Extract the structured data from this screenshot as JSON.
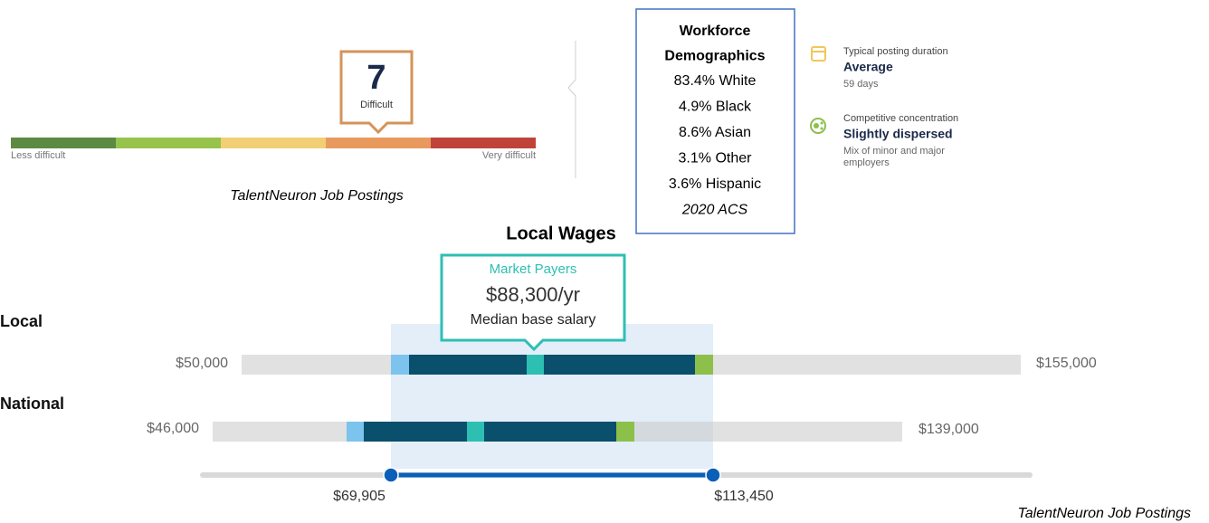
{
  "difficulty": {
    "score": "7",
    "label": "Difficult",
    "scale_low": "Less difficult",
    "scale_high": "Very difficult",
    "source": "TalentNeuron Job Postings"
  },
  "demographics": {
    "title_lines": [
      "Workforce",
      "Demographics"
    ],
    "lines": [
      "83.4% White",
      "4.9% Black",
      "8.6% Asian",
      "3.1% Other",
      "3.6% Hispanic"
    ],
    "source": "2020 ACS"
  },
  "posting": {
    "items": [
      {
        "label": "Typical posting duration",
        "value": "Average",
        "detail_lines": [
          "59 days"
        ]
      },
      {
        "label": "Competitive concentration",
        "value": "Slightly dispersed",
        "detail_lines": [
          "Mix of minor and major",
          "employers"
        ]
      }
    ]
  },
  "wages": {
    "title": "Local Wages",
    "callout": {
      "heading": "Market Payers",
      "value": "$88,300/yr",
      "caption": "Median base salary"
    },
    "rows": [
      {
        "name": "Local",
        "min": "$50,000",
        "max": "$155,000"
      },
      {
        "name": "National",
        "min": "$46,000",
        "max": "$139,000"
      }
    ],
    "range": {
      "low": "$69,905",
      "high": "$113,450"
    },
    "source": "TalentNeuron Job Postings"
  }
}
